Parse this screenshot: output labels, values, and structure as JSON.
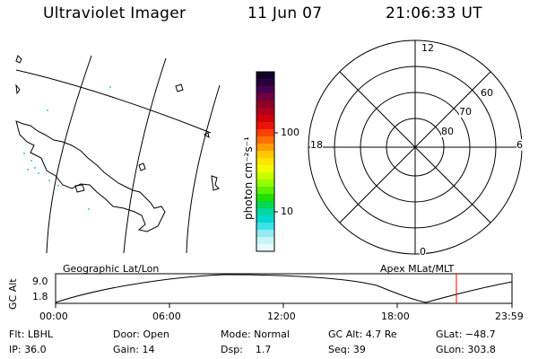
{
  "header": {
    "instrument": "Ultraviolet Imager",
    "date": "11 Jun 07",
    "time": "21:06:33 UT"
  },
  "colorbar": {
    "label": "photon cm⁻²s⁻¹",
    "tick_100": "100",
    "tick_10": "10",
    "colors_top_to_bottom": [
      "#14002a",
      "#2a0040",
      "#4a0050",
      "#700040",
      "#8c0028",
      "#b0001a",
      "#d0000a",
      "#e8140a",
      "#ff4000",
      "#ff7000",
      "#ff9c00",
      "#ffc800",
      "#ffe600",
      "#f0ff00",
      "#c8ff00",
      "#96ff00",
      "#5cf000",
      "#20e000",
      "#00d850",
      "#00d8a0",
      "#00d8d0",
      "#40e0e8",
      "#90ecf0",
      "#c8f4f8",
      "#e8fafc"
    ]
  },
  "polar_plot": {
    "mlt_top": "12",
    "mlt_left": "18",
    "mlt_right": "6",
    "mlt_bottom": "0",
    "lat_60": "60",
    "lat_70": "70",
    "lat_80": "80"
  },
  "map_labels": {
    "left": "Geographic Lat/Lon",
    "right": "Apex MLat/MLT"
  },
  "altitude_plot": {
    "axis_label": "GC Alt",
    "y_max": "9.0",
    "y_min": "1.8",
    "x_ticks": [
      "00:00",
      "06:00",
      "12:00",
      "18:00",
      "23:59"
    ]
  },
  "footer": {
    "flt": "Flt: LBHL",
    "ip": "IP: 36.0",
    "door": "Door: Open",
    "gain": "Gain: 14",
    "mode": "Mode: Normal",
    "dsp": "Dsp:    1.7",
    "gcalt": "GC Alt: 4.7 Re",
    "seq": "Seq: 39",
    "glat": "GLat: −48.7",
    "glon": "GLon: 303.8"
  },
  "colors": {
    "current_time_marker": "#ff0000",
    "speckle": "#66d8e8"
  }
}
